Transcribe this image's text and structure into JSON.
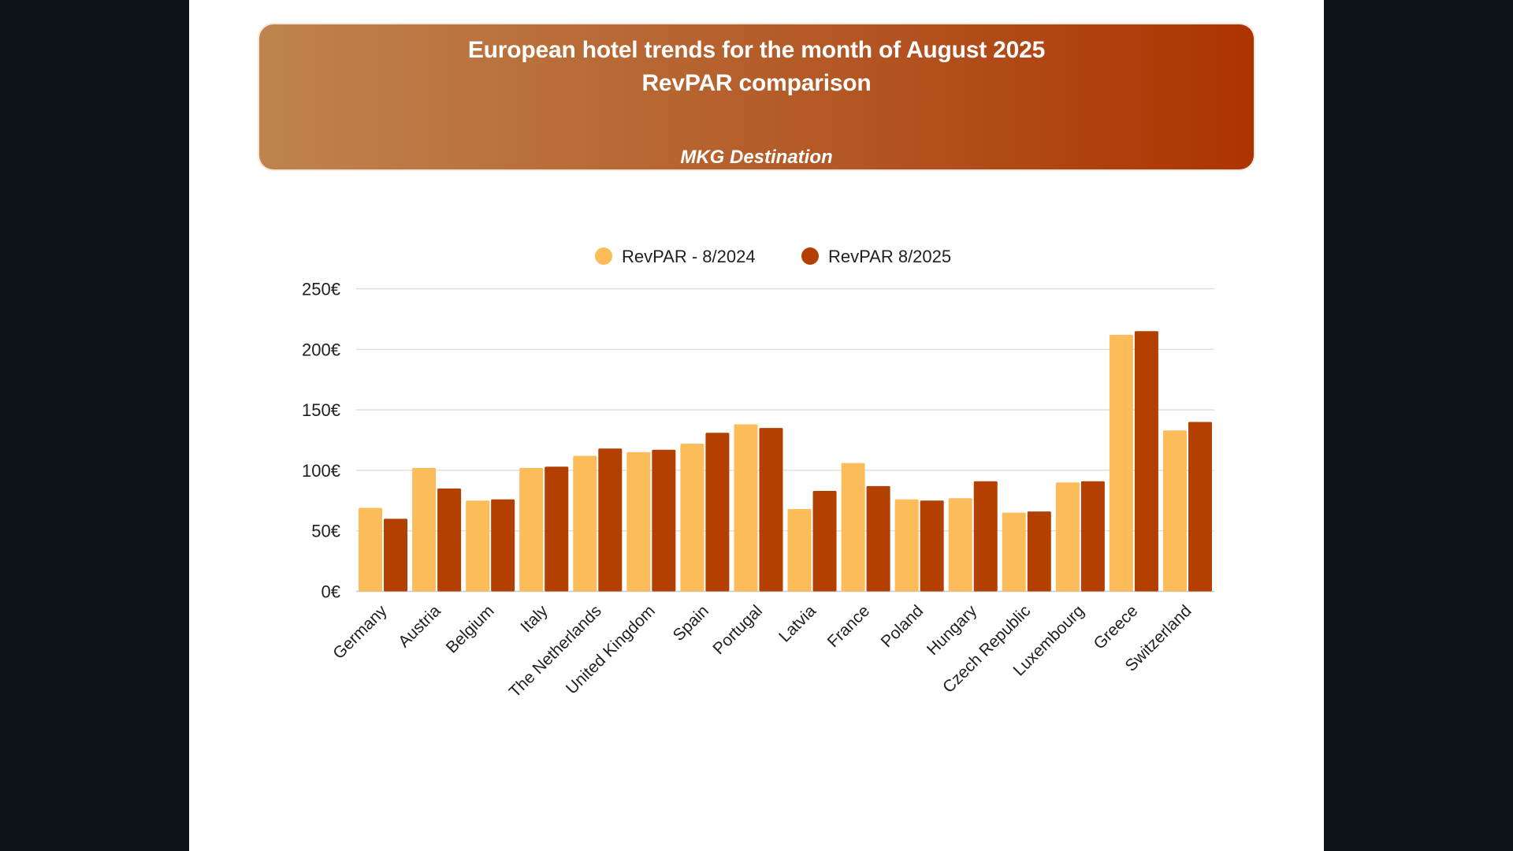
{
  "banner": {
    "title_line1": "European hotel trends for the month of August 2025",
    "title_line2": "RevPAR comparison",
    "subtitle": "MKG Destination"
  },
  "colors": {
    "series_2024": "#FDBC5A",
    "series_2025": "#B34000",
    "banner_left": "#BF834E",
    "banner_right": "#AD3400",
    "gridline": "#D9D9D9",
    "background": "#0E1318"
  },
  "chart_data": {
    "type": "bar",
    "title": "European hotel trends for the month of August 2025 - RevPAR comparison",
    "xlabel": "",
    "ylabel": "",
    "ylim": [
      0,
      250
    ],
    "yticks": [
      0,
      50,
      100,
      150,
      200,
      250
    ],
    "ytick_labels": [
      "0€",
      "50€",
      "100€",
      "150€",
      "200€",
      "250€"
    ],
    "grid": true,
    "legend_position": "top-center",
    "categories": [
      "Germany",
      "Austria",
      "Belgium",
      "Italy",
      "The Netherlands",
      "United Kingdom",
      "Spain",
      "Portugal",
      "Latvia",
      "France",
      "Poland",
      "Hungary",
      "Czech Republic",
      "Luxembourg",
      "Greece",
      "Switzerland"
    ],
    "series": [
      {
        "name": "RevPAR - 8/2024",
        "color": "#FDBC5A",
        "values": [
          69,
          102,
          75,
          102,
          112,
          115,
          122,
          138,
          68,
          106,
          76,
          77,
          65,
          90,
          212,
          133
        ]
      },
      {
        "name": "RevPAR 8/2025",
        "color": "#B34000",
        "values": [
          60,
          85,
          76,
          103,
          118,
          117,
          131,
          135,
          83,
          87,
          75,
          91,
          66,
          91,
          215,
          140
        ]
      }
    ]
  }
}
